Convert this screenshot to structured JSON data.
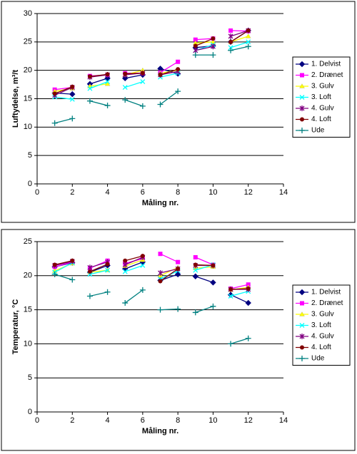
{
  "chart_data": [
    {
      "type": "line",
      "xlabel": "Måling nr.",
      "ylabel": "Luftydelse, m³/t",
      "x": [
        1,
        2,
        null,
        3,
        4,
        null,
        5,
        6,
        null,
        7,
        8,
        null,
        9,
        10,
        null,
        11,
        12
      ],
      "xlim": [
        0,
        14
      ],
      "xticks": [
        0,
        2,
        4,
        6,
        8,
        10,
        12,
        14
      ],
      "ylim": [
        0,
        30
      ],
      "yticks": [
        0,
        5,
        10,
        15,
        20,
        25,
        30
      ],
      "grid": true,
      "legend": "right",
      "series": [
        {
          "name": "1. Delvist",
          "color": "#000080",
          "marker": "diamond",
          "values": [
            16.0,
            15.8,
            null,
            17.6,
            18.6,
            null,
            18.6,
            19.2,
            null,
            20.3,
            19.4,
            null,
            24.0,
            24.3,
            null,
            25.0,
            27.0
          ]
        },
        {
          "name": "2. Drænet",
          "color": "#ff00ff",
          "marker": "square",
          "values": [
            16.6,
            17.0,
            null,
            19.0,
            19.2,
            null,
            19.5,
            19.5,
            null,
            19.6,
            21.5,
            null,
            25.4,
            25.6,
            null,
            27.0,
            26.9
          ]
        },
        {
          "name": "3. Gulv",
          "color": "#ffff00",
          "marker": "triangle",
          "values": [
            16.3,
            16.8,
            null,
            17.2,
            17.6,
            null,
            19.2,
            20.0,
            null,
            19.5,
            20.0,
            null,
            24.8,
            25.0,
            null,
            25.0,
            26.0
          ]
        },
        {
          "name": "3. Loft",
          "color": "#00ffff",
          "marker": "x",
          "values": [
            15.3,
            14.9,
            null,
            16.8,
            18.0,
            null,
            17.0,
            18.0,
            null,
            18.8,
            19.5,
            null,
            23.5,
            24.5,
            null,
            24.0,
            25.0
          ]
        },
        {
          "name": "4. Gulv",
          "color": "#800080",
          "marker": "star",
          "values": [
            15.6,
            17.0,
            null,
            18.8,
            19.2,
            null,
            19.2,
            19.5,
            null,
            19.2,
            19.8,
            null,
            23.5,
            24.2,
            null,
            26.0,
            27.0
          ]
        },
        {
          "name": "4. Loft",
          "color": "#800000",
          "marker": "circle",
          "values": [
            15.9,
            17.1,
            null,
            18.9,
            19.3,
            null,
            19.4,
            19.5,
            null,
            19.2,
            20.2,
            null,
            24.3,
            25.6,
            null,
            25.0,
            27.0
          ]
        },
        {
          "name": "Ude",
          "color": "#008080",
          "marker": "plus",
          "values": [
            10.7,
            11.5,
            null,
            14.6,
            13.8,
            null,
            14.8,
            13.7,
            null,
            14.0,
            16.3,
            null,
            22.7,
            22.7,
            null,
            23.5,
            24.2
          ]
        }
      ]
    },
    {
      "type": "line",
      "xlabel": "Måling nr.",
      "ylabel": "Temperatur, °C",
      "x": [
        1,
        2,
        null,
        3,
        4,
        null,
        5,
        6,
        null,
        7,
        8,
        null,
        9,
        10,
        null,
        11,
        12
      ],
      "xlim": [
        0,
        14
      ],
      "xticks": [
        0,
        2,
        4,
        6,
        8,
        10,
        12,
        14
      ],
      "ylim": [
        0,
        25
      ],
      "yticks": [
        0,
        5,
        10,
        15,
        20,
        25
      ],
      "grid": true,
      "legend": "right",
      "series": [
        {
          "name": "1. Delvist",
          "color": "#000080",
          "marker": "diamond",
          "values": [
            21.3,
            21.9,
            null,
            20.5,
            21.5,
            null,
            21.0,
            22.0,
            null,
            19.3,
            20.2,
            null,
            19.9,
            19.0,
            null,
            17.2,
            16.0
          ]
        },
        {
          "name": "2. Drænet",
          "color": "#ff00ff",
          "marker": "square",
          "values": [
            21.3,
            22.0,
            null,
            21.1,
            22.2,
            null,
            21.8,
            22.5,
            null,
            23.2,
            22.0,
            null,
            22.7,
            21.6,
            null,
            18.1,
            18.7
          ]
        },
        {
          "name": "3. Gulv",
          "color": "#ffff00",
          "marker": "triangle",
          "values": [
            20.7,
            21.8,
            null,
            20.5,
            20.8,
            null,
            21.4,
            22.3,
            null,
            20.0,
            21.2,
            null,
            21.1,
            21.3,
            null,
            17.9,
            18.3
          ]
        },
        {
          "name": "3. Loft",
          "color": "#00ffff",
          "marker": "x",
          "values": [
            20.5,
            21.9,
            null,
            20.2,
            20.8,
            null,
            20.6,
            21.5,
            null,
            19.5,
            20.7,
            null,
            20.8,
            21.6,
            null,
            17.0,
            17.7
          ]
        },
        {
          "name": "4. Gulv",
          "color": "#800080",
          "marker": "star",
          "values": [
            21.5,
            22.1,
            null,
            21.2,
            22.0,
            null,
            21.6,
            22.7,
            null,
            20.4,
            21.0,
            null,
            21.5,
            21.5,
            null,
            18.0,
            18.0
          ]
        },
        {
          "name": "4. Loft",
          "color": "#800000",
          "marker": "circle",
          "values": [
            21.6,
            22.2,
            null,
            20.6,
            21.7,
            null,
            22.2,
            22.9,
            null,
            19.2,
            21.0,
            null,
            21.6,
            21.5,
            null,
            18.0,
            18.1
          ]
        },
        {
          "name": "Ude",
          "color": "#008080",
          "marker": "plus",
          "values": [
            20.2,
            19.4,
            null,
            17.0,
            17.6,
            null,
            16.0,
            17.9,
            null,
            15.0,
            15.1,
            null,
            14.6,
            15.5,
            null,
            10.0,
            10.8
          ]
        }
      ]
    }
  ]
}
